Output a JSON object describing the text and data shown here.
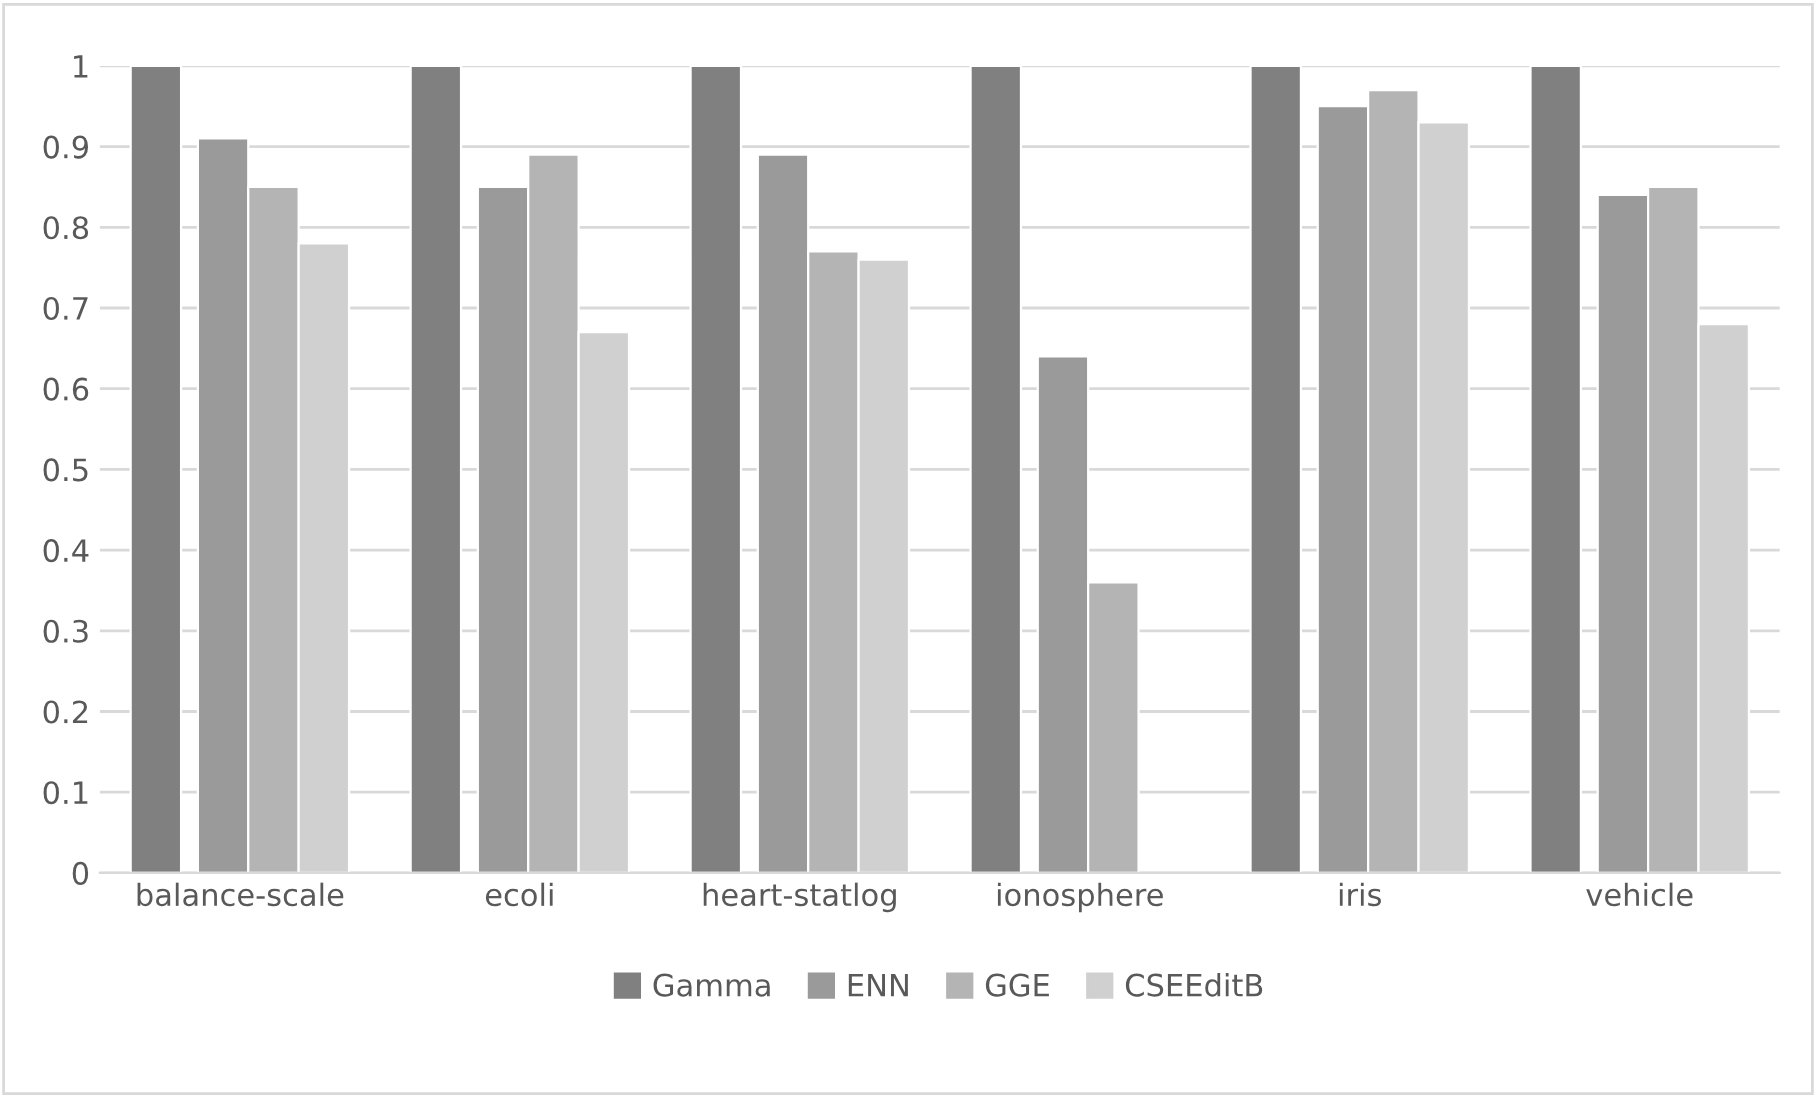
{
  "chart_data": {
    "type": "bar",
    "categories": [
      "balance-scale",
      "ecoli",
      "heart-statlog",
      "ionosphere",
      "iris",
      "vehicle"
    ],
    "series": [
      {
        "name": "Gamma",
        "color": "#808080",
        "values": [
          1,
          1,
          1,
          1,
          1,
          1
        ]
      },
      {
        "name": "ENN",
        "color": "#9a9a9a",
        "values": [
          0.91,
          0.85,
          0.89,
          0.64,
          0.95,
          0.84
        ]
      },
      {
        "name": "GGE",
        "color": "#b4b4b4",
        "values": [
          0.85,
          0.89,
          0.77,
          0.36,
          0.97,
          0.85
        ]
      },
      {
        "name": "CSEEditB",
        "color": "#d0d0d0",
        "values": [
          0.78,
          0.67,
          0.76,
          null,
          0.93,
          0.68
        ]
      }
    ],
    "ylim": [
      0,
      1
    ],
    "yticks": [
      0,
      0.1,
      0.2,
      0.3,
      0.4,
      0.5,
      0.6,
      0.7,
      0.8,
      0.9,
      1
    ],
    "grid": "y",
    "legend": "bottom"
  }
}
